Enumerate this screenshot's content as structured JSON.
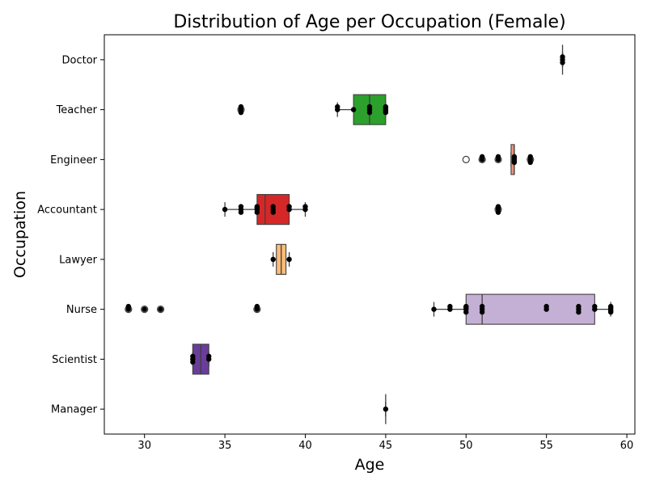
{
  "chart_data": {
    "type": "box",
    "title": "Distribution of Age per Occupation (Female)",
    "xlabel": "Age",
    "ylabel": "Occupation",
    "xlim": [
      27.5,
      60.5
    ],
    "xticks": [
      25,
      30,
      35,
      40,
      45,
      50,
      55,
      60
    ],
    "orientation": "horizontal",
    "grid": false,
    "categories": [
      "Doctor",
      "Teacher",
      "Engineer",
      "Accountant",
      "Lawyer",
      "Nurse",
      "Scientist",
      "Manager"
    ],
    "boxes": [
      {
        "category": "Doctor",
        "color": "#1f77b4",
        "min": 56,
        "q1": 56,
        "median": 56,
        "q3": 56,
        "max": 56,
        "outliers": []
      },
      {
        "category": "Teacher",
        "color": "#2ca02c",
        "min": 42,
        "q1": 43,
        "median": 44,
        "q3": 45,
        "max": 45,
        "outliers": [
          36
        ]
      },
      {
        "category": "Engineer",
        "color": "#e9967a",
        "min": 52.8,
        "q1": 52.8,
        "median": 53,
        "q3": 53,
        "max": 53,
        "outliers": [
          50,
          51,
          52,
          54
        ]
      },
      {
        "category": "Accountant",
        "color": "#d62728",
        "min": 35,
        "q1": 37,
        "median": 37.5,
        "q3": 39,
        "max": 40,
        "outliers": [
          52
        ]
      },
      {
        "category": "Lawyer",
        "color": "#ffbb78",
        "min": 38,
        "q1": 38.2,
        "median": 38.5,
        "q3": 38.8,
        "max": 39,
        "outliers": []
      },
      {
        "category": "Nurse",
        "color": "#c5b0d5",
        "min": 48,
        "q1": 50,
        "median": 51,
        "q3": 58,
        "max": 59,
        "outliers": [
          29,
          30,
          31,
          37
        ]
      },
      {
        "category": "Scientist",
        "color": "#6a3d9a",
        "min": 33,
        "q1": 33,
        "median": 33.5,
        "q3": 34,
        "max": 34,
        "outliers": []
      },
      {
        "category": "Manager",
        "color": "#1f77b4",
        "min": 45,
        "q1": 45,
        "median": 45,
        "q3": 45,
        "max": 45,
        "outliers": []
      }
    ],
    "points": [
      {
        "category": "Doctor",
        "x": [
          56,
          56,
          56
        ]
      },
      {
        "category": "Teacher",
        "x": [
          36,
          36,
          36,
          42,
          42,
          43,
          44,
          44,
          44,
          45,
          45,
          45,
          45,
          45
        ]
      },
      {
        "category": "Engineer",
        "x": [
          51,
          51,
          52,
          52,
          53,
          53,
          53,
          53,
          53,
          54,
          54,
          54
        ]
      },
      {
        "category": "Accountant",
        "x": [
          35,
          36,
          36,
          36,
          37,
          37,
          37,
          37,
          38,
          38,
          38,
          39,
          39,
          40,
          40,
          52,
          52,
          52,
          52
        ]
      },
      {
        "category": "Lawyer",
        "x": [
          38,
          39
        ]
      },
      {
        "category": "Nurse",
        "x": [
          29,
          29,
          30,
          31,
          37,
          37,
          48,
          49,
          49,
          50,
          50,
          50,
          50,
          51,
          51,
          51,
          55,
          55,
          57,
          57,
          57,
          58,
          58,
          59,
          59,
          59,
          59,
          59
        ]
      },
      {
        "category": "Scientist",
        "x": [
          33,
          33,
          33,
          34,
          34
        ]
      },
      {
        "category": "Manager",
        "x": [
          45
        ]
      }
    ]
  }
}
